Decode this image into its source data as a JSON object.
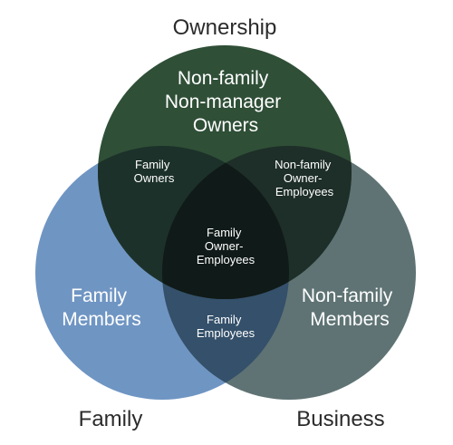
{
  "diagram": {
    "circles": {
      "ownership": {
        "name": "Ownership",
        "color": "#2f4f37"
      },
      "family": {
        "name": "Family",
        "color": "#6f95c3"
      },
      "business": {
        "name": "Business",
        "color": "#5f7374"
      }
    },
    "overlap_colors": {
      "ownership_family": "#1c312a",
      "ownership_business": "#1e2e28",
      "family_business": "#34506a",
      "all_three": "#101a18"
    },
    "regions": {
      "ownership_only": [
        "Non-family",
        "Non-manager",
        "Owners"
      ],
      "family_only": [
        "Family",
        "Members"
      ],
      "business_only": [
        "Non-family",
        "Members"
      ],
      "family_owners": [
        "Family",
        "Owners"
      ],
      "nonfamily_owner_employees": [
        "Non-family",
        "Owner-",
        "Employees"
      ],
      "family_employees": [
        "Family",
        "Employees"
      ],
      "family_owner_employees": [
        "Family",
        "Owner-",
        "Employees"
      ]
    }
  }
}
